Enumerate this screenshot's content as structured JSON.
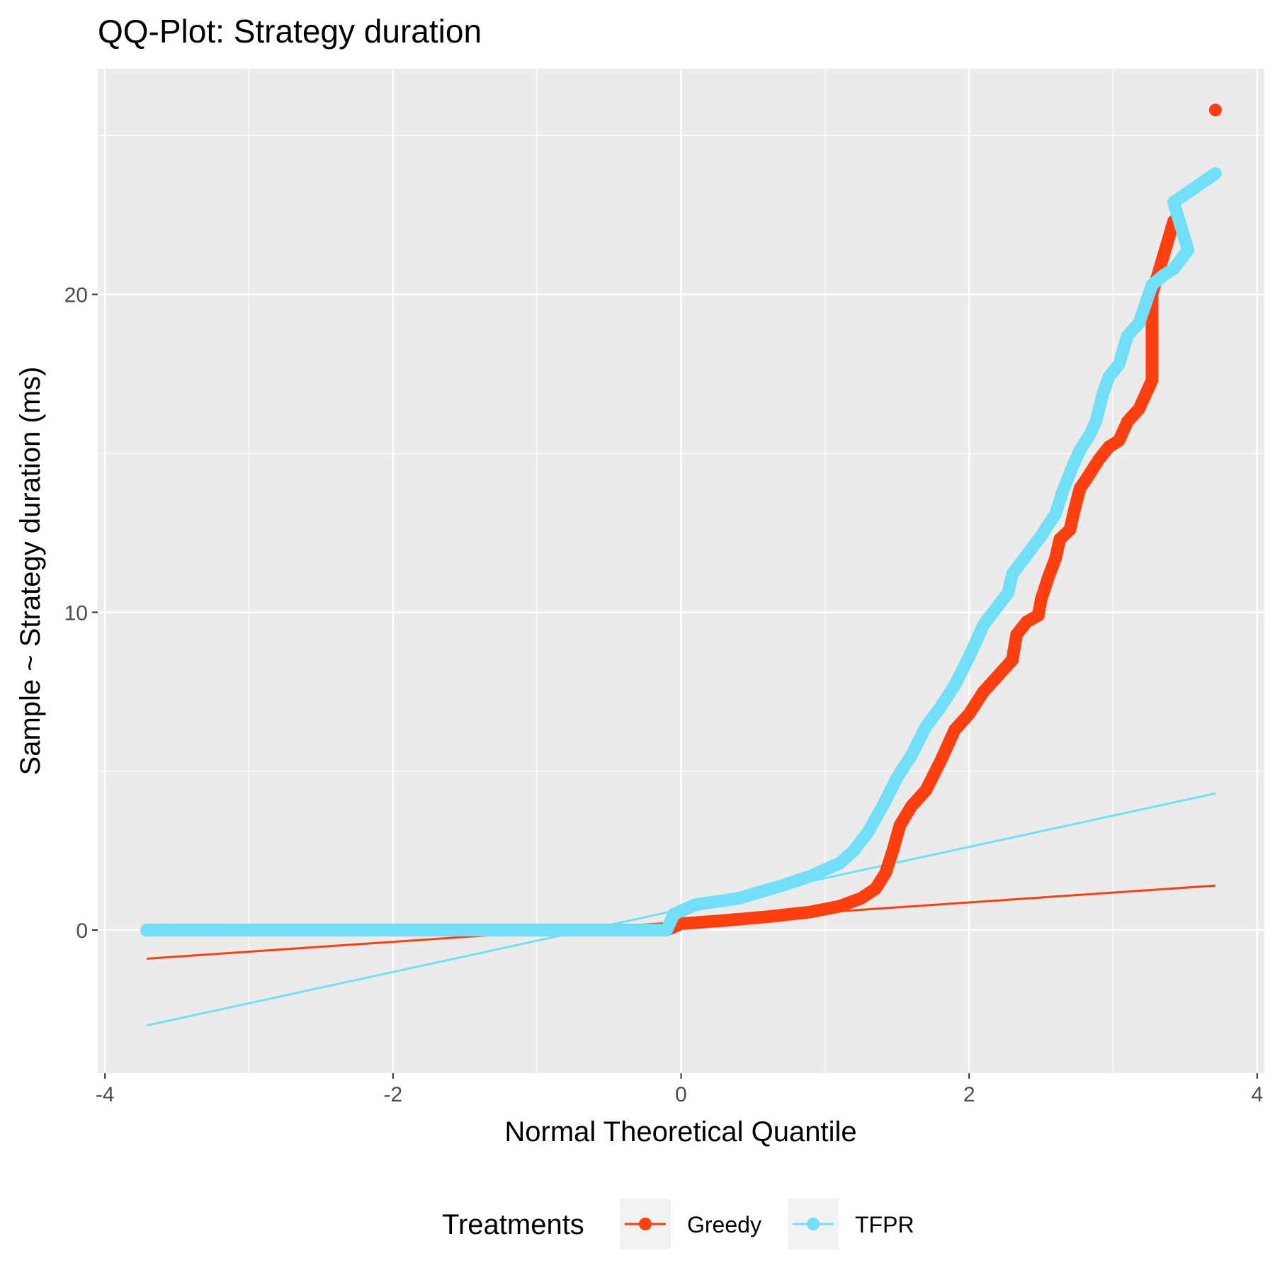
{
  "chart_data": {
    "type": "scatter",
    "title": "QQ-Plot: Strategy duration",
    "xlabel": "Normal Theoretical Quantile",
    "ylabel": "Sample ~ Strategy duration (ms)",
    "xlim": [
      -4.05,
      4.05
    ],
    "ylim": [
      -4.5,
      27.1
    ],
    "xticks": [
      -4,
      -2,
      0,
      2,
      4
    ],
    "xtick_labels": [
      "-4",
      "-2",
      "0",
      "2",
      "4"
    ],
    "yticks": [
      0,
      10,
      20
    ],
    "ytick_labels": [
      "0",
      "10",
      "20"
    ],
    "grid": true,
    "legend": {
      "title": "Treatments",
      "position": "bottom",
      "entries": [
        "Greedy",
        "TFPR"
      ]
    },
    "colors": {
      "Greedy": "#ff3f0f",
      "TFPR": "#72dff8",
      "panel": "#ebebeb",
      "grid": "#ffffff"
    },
    "series": [
      {
        "name": "Greedy",
        "points": [
          [
            -3.71,
            0.0
          ],
          [
            -3.42,
            0.0
          ],
          [
            -3.28,
            0.0
          ],
          [
            -3.18,
            0.0
          ],
          [
            -3.09,
            0.0
          ],
          [
            -3.0,
            0.0
          ],
          [
            -2.8,
            0.0
          ],
          [
            -2.5,
            0.0
          ],
          [
            -2.0,
            0.0
          ],
          [
            -1.5,
            0.0
          ],
          [
            -1.0,
            0.0
          ],
          [
            -0.5,
            0.0
          ],
          [
            -0.1,
            0.0
          ],
          [
            0.0,
            0.2
          ],
          [
            0.3,
            0.3
          ],
          [
            0.6,
            0.42
          ],
          [
            0.9,
            0.57
          ],
          [
            1.1,
            0.75
          ],
          [
            1.25,
            1.0
          ],
          [
            1.35,
            1.3
          ],
          [
            1.42,
            1.8
          ],
          [
            1.47,
            2.5
          ],
          [
            1.52,
            3.3
          ],
          [
            1.6,
            3.9
          ],
          [
            1.7,
            4.4
          ],
          [
            1.8,
            5.3
          ],
          [
            1.9,
            6.3
          ],
          [
            2.0,
            6.8
          ],
          [
            2.1,
            7.5
          ],
          [
            2.2,
            8.0
          ],
          [
            2.3,
            8.5
          ],
          [
            2.33,
            9.3
          ],
          [
            2.4,
            9.7
          ],
          [
            2.48,
            9.9
          ],
          [
            2.5,
            10.4
          ],
          [
            2.55,
            11.1
          ],
          [
            2.6,
            11.7
          ],
          [
            2.63,
            12.3
          ],
          [
            2.7,
            12.6
          ],
          [
            2.73,
            13.2
          ],
          [
            2.77,
            13.9
          ],
          [
            2.83,
            14.3
          ],
          [
            2.9,
            14.8
          ],
          [
            2.97,
            15.2
          ],
          [
            3.04,
            15.4
          ],
          [
            3.1,
            16.0
          ],
          [
            3.18,
            16.4
          ],
          [
            3.27,
            17.3
          ],
          [
            3.27,
            20.0
          ],
          [
            3.42,
            22.3
          ],
          [
            3.71,
            25.8
          ]
        ],
        "ref_line": [
          [
            -3.71,
            -0.9
          ],
          [
            3.71,
            1.4
          ]
        ]
      },
      {
        "name": "TFPR",
        "points": [
          [
            -3.71,
            0.0
          ],
          [
            -3.42,
            0.0
          ],
          [
            -3.28,
            0.0
          ],
          [
            -3.18,
            0.0
          ],
          [
            -3.09,
            0.0
          ],
          [
            -3.0,
            0.0
          ],
          [
            -2.8,
            0.0
          ],
          [
            -2.5,
            0.0
          ],
          [
            -2.0,
            0.0
          ],
          [
            -1.5,
            0.0
          ],
          [
            -1.0,
            0.0
          ],
          [
            -0.5,
            0.0
          ],
          [
            -0.1,
            0.0
          ],
          [
            -0.05,
            0.5
          ],
          [
            0.1,
            0.8
          ],
          [
            0.4,
            1.0
          ],
          [
            0.7,
            1.4
          ],
          [
            0.9,
            1.7
          ],
          [
            1.1,
            2.1
          ],
          [
            1.2,
            2.5
          ],
          [
            1.3,
            3.1
          ],
          [
            1.4,
            3.9
          ],
          [
            1.5,
            4.8
          ],
          [
            1.6,
            5.5
          ],
          [
            1.7,
            6.4
          ],
          [
            1.8,
            7.0
          ],
          [
            1.9,
            7.7
          ],
          [
            2.0,
            8.6
          ],
          [
            2.1,
            9.6
          ],
          [
            2.2,
            10.2
          ],
          [
            2.27,
            10.6
          ],
          [
            2.3,
            11.2
          ],
          [
            2.4,
            11.8
          ],
          [
            2.5,
            12.4
          ],
          [
            2.6,
            13.1
          ],
          [
            2.65,
            13.8
          ],
          [
            2.72,
            14.6
          ],
          [
            2.77,
            15.1
          ],
          [
            2.84,
            15.6
          ],
          [
            2.88,
            16.0
          ],
          [
            2.93,
            16.9
          ],
          [
            2.97,
            17.4
          ],
          [
            3.04,
            17.8
          ],
          [
            3.1,
            18.7
          ],
          [
            3.18,
            19.1
          ],
          [
            3.27,
            20.3
          ],
          [
            3.35,
            20.6
          ],
          [
            3.42,
            20.8
          ],
          [
            3.52,
            21.4
          ],
          [
            3.42,
            22.9
          ],
          [
            3.71,
            23.8
          ]
        ],
        "ref_line": [
          [
            -3.71,
            -3.0
          ],
          [
            3.71,
            4.3
          ]
        ]
      }
    ]
  }
}
